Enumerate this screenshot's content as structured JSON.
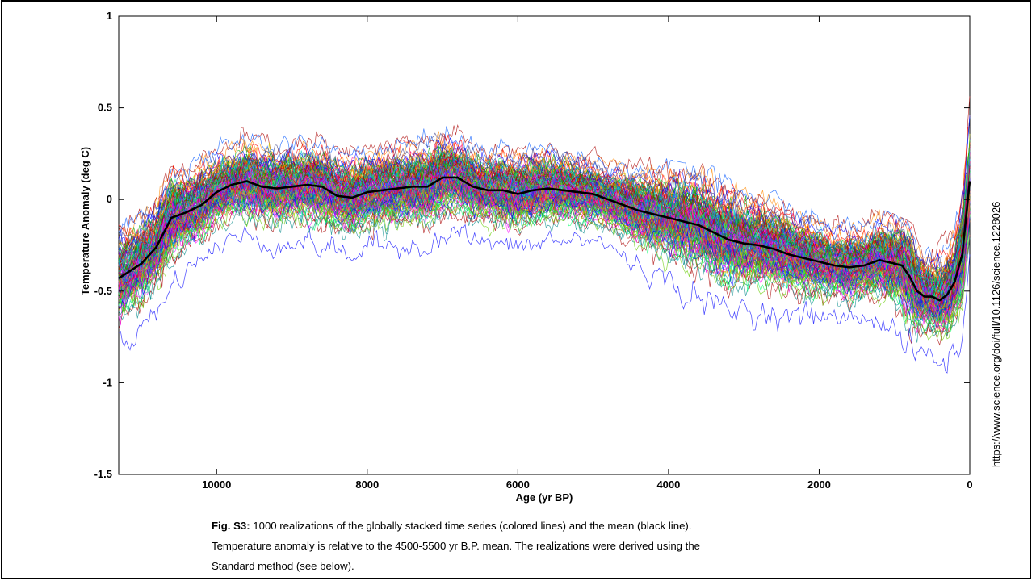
{
  "chart_data": {
    "type": "line",
    "xlabel": "Age (yr BP)",
    "ylabel": "Temperature Anomaly (deg C)",
    "xlim": [
      11300,
      0
    ],
    "ylim": [
      -1.5,
      1
    ],
    "x_ticks": [
      "10000",
      "8000",
      "6000",
      "4000",
      "2000",
      "0"
    ],
    "y_ticks": [
      "1",
      "0.5",
      "0",
      "-0.5",
      "-1",
      "-1.5"
    ],
    "grid": false,
    "series": [
      {
        "name": "mean",
        "color": "#000000",
        "x": [
          11300,
          11000,
          10800,
          10600,
          10400,
          10200,
          10000,
          9800,
          9600,
          9400,
          9200,
          9000,
          8800,
          8600,
          8400,
          8200,
          8000,
          7800,
          7600,
          7400,
          7200,
          7000,
          6800,
          6600,
          6400,
          6200,
          6000,
          5800,
          5600,
          5400,
          5200,
          5000,
          4800,
          4600,
          4400,
          4200,
          4000,
          3800,
          3600,
          3400,
          3200,
          3000,
          2800,
          2600,
          2400,
          2200,
          2000,
          1800,
          1600,
          1400,
          1200,
          1000,
          900,
          800,
          700,
          600,
          500,
          400,
          300,
          200,
          100,
          50,
          0
        ],
        "y": [
          -0.43,
          -0.35,
          -0.26,
          -0.1,
          -0.07,
          -0.03,
          0.04,
          0.08,
          0.1,
          0.07,
          0.06,
          0.07,
          0.08,
          0.07,
          0.02,
          0.01,
          0.04,
          0.05,
          0.06,
          0.07,
          0.07,
          0.12,
          0.12,
          0.07,
          0.05,
          0.05,
          0.03,
          0.05,
          0.06,
          0.05,
          0.04,
          0.03,
          0.0,
          -0.03,
          -0.06,
          -0.08,
          -0.1,
          -0.12,
          -0.14,
          -0.18,
          -0.22,
          -0.24,
          -0.25,
          -0.27,
          -0.3,
          -0.32,
          -0.34,
          -0.36,
          -0.37,
          -0.36,
          -0.33,
          -0.35,
          -0.36,
          -0.42,
          -0.5,
          -0.53,
          -0.53,
          -0.55,
          -0.52,
          -0.45,
          -0.3,
          -0.1,
          0.1
        ]
      },
      {
        "name": "realizations",
        "x": [
          11300,
          11000,
          10800,
          10600,
          10400,
          10200,
          10000,
          9800,
          9600,
          9400,
          9200,
          9000,
          8800,
          8600,
          8400,
          8200,
          8000,
          7800,
          7600,
          7400,
          7200,
          7000,
          6800,
          6600,
          6400,
          6200,
          6000,
          5800,
          5600,
          5400,
          5200,
          5000,
          4800,
          4600,
          4400,
          4200,
          4000,
          3800,
          3600,
          3400,
          3200,
          3000,
          2800,
          2600,
          2400,
          2200,
          2000,
          1800,
          1600,
          1400,
          1200,
          1000,
          900,
          800,
          700,
          600,
          500,
          400,
          300,
          200,
          100,
          50,
          0
        ],
        "y_upper": [
          0.05,
          0.08,
          0.1,
          0.18,
          0.3,
          0.38,
          0.42,
          0.45,
          0.5,
          0.48,
          0.45,
          0.45,
          0.45,
          0.42,
          0.4,
          0.42,
          0.42,
          0.45,
          0.45,
          0.47,
          0.5,
          0.55,
          0.5,
          0.45,
          0.42,
          0.42,
          0.4,
          0.45,
          0.42,
          0.4,
          0.38,
          0.35,
          0.32,
          0.3,
          0.28,
          0.25,
          0.22,
          0.2,
          0.2,
          0.18,
          0.12,
          0.1,
          0.08,
          0.05,
          0.02,
          0.0,
          0.0,
          -0.05,
          -0.05,
          -0.05,
          -0.05,
          -0.08,
          -0.1,
          -0.12,
          -0.15,
          -0.15,
          -0.12,
          -0.1,
          -0.05,
          0.0,
          0.2,
          0.5,
          0.75
        ],
        "y_lower": [
          -0.88,
          -0.8,
          -0.72,
          -0.6,
          -0.45,
          -0.38,
          -0.3,
          -0.28,
          -0.28,
          -0.3,
          -0.33,
          -0.32,
          -0.33,
          -0.35,
          -0.38,
          -0.4,
          -0.36,
          -0.35,
          -0.35,
          -0.32,
          -0.3,
          -0.25,
          -0.25,
          -0.3,
          -0.32,
          -0.35,
          -0.36,
          -0.33,
          -0.3,
          -0.32,
          -0.3,
          -0.3,
          -0.32,
          -0.4,
          -0.45,
          -0.5,
          -0.58,
          -0.6,
          -0.65,
          -0.7,
          -0.75,
          -0.7,
          -0.72,
          -0.72,
          -0.72,
          -0.75,
          -0.72,
          -0.72,
          -0.75,
          -0.72,
          -0.75,
          -0.8,
          -0.88,
          -0.95,
          -0.95,
          -0.95,
          -0.93,
          -0.92,
          -0.95,
          -0.95,
          -0.9,
          -0.65,
          -0.3
        ]
      }
    ]
  },
  "source_url": "https://www.science.org/doi/full/10.1126/science.1228026",
  "caption": {
    "label": "Fig. S3:",
    "line1": " 1000 realizations of the globally stacked time series (colored lines) and the mean (black line).",
    "line2": "Temperature anomaly is relative to the 4500-5500 yr B.P. mean.  The realizations were derived using the",
    "line3": "Standard method (see below)."
  }
}
